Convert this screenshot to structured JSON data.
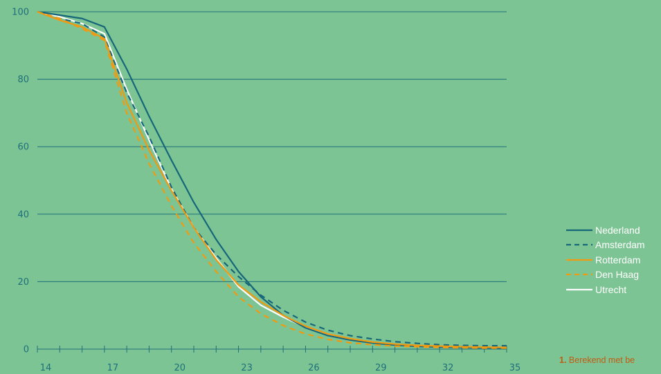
{
  "chart_data": {
    "type": "line",
    "x": [
      14,
      15,
      16,
      17,
      18,
      19,
      20,
      21,
      22,
      23,
      24,
      25,
      26,
      27,
      28,
      29,
      30,
      31,
      32,
      33,
      34,
      35
    ],
    "xticks": [
      14,
      17,
      20,
      23,
      26,
      29,
      32,
      35
    ],
    "yticks": [
      0,
      20,
      40,
      60,
      80,
      100
    ],
    "xlim": [
      14,
      35
    ],
    "ylim": [
      0,
      100
    ],
    "grid": "horizontal",
    "legend_position": "right",
    "series": [
      {
        "name": "Nederland",
        "color": "#16667a",
        "dash": "solid",
        "values": [
          100,
          99,
          98,
          95.5,
          83,
          69,
          56,
          43.5,
          32.5,
          23,
          15.5,
          10,
          6.3,
          4,
          2.7,
          1.8,
          1.2,
          0.8,
          0.6,
          0.5,
          0.4,
          0.3
        ]
      },
      {
        "name": "Amsterdam",
        "color": "#16667a",
        "dash": "dashed",
        "values": [
          100,
          98,
          96.5,
          92.5,
          76,
          63,
          48,
          36,
          28,
          21.5,
          16,
          11.5,
          8,
          5.6,
          4,
          3,
          2.2,
          1.7,
          1.3,
          1.1,
          1,
          1
        ]
      },
      {
        "name": "Rotterdam",
        "color": "#f09a12",
        "dash": "solid",
        "values": [
          100,
          97.5,
          95.5,
          92,
          73,
          59,
          47,
          36,
          26.5,
          19,
          14,
          10,
          6.8,
          4.5,
          3.1,
          2.1,
          1.5,
          1.1,
          0.9,
          0.7,
          0.6,
          0.5
        ]
      },
      {
        "name": "Den Haag",
        "color": "#f09a12",
        "dash": "dashed",
        "values": [
          100,
          98,
          95,
          91.5,
          70,
          55,
          42.5,
          31.5,
          23,
          15.5,
          10.5,
          7,
          4.5,
          2.9,
          1.9,
          1.3,
          0.9,
          0.7,
          0.5,
          0.4,
          0.3,
          0.3
        ]
      },
      {
        "name": "Utrecht",
        "color": "#ffffff",
        "dash": "solid",
        "values": [
          100,
          98.5,
          96.5,
          93.5,
          77,
          62,
          47.5,
          36,
          27,
          18.5,
          13,
          9.5,
          6.5,
          4.5,
          3,
          2,
          1.4,
          1,
          0.8,
          0.6,
          0.5,
          0.4
        ]
      }
    ]
  },
  "footnote": {
    "number": "1.",
    "text": "Berekend met be"
  }
}
